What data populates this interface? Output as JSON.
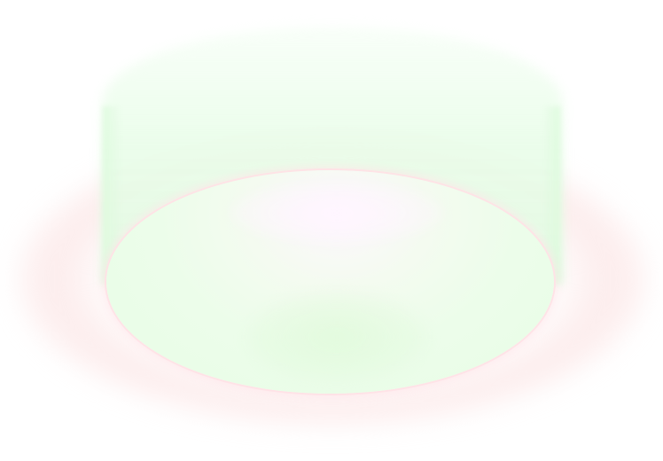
{
  "scene": {
    "description_colors": {
      "background": "#ffffff",
      "glow_green": "#e8fde6",
      "rim_pink": "#ffe1e6",
      "highlight": "#fdf7fd"
    },
    "icons": [
      "glowing-disc-icon"
    ]
  }
}
